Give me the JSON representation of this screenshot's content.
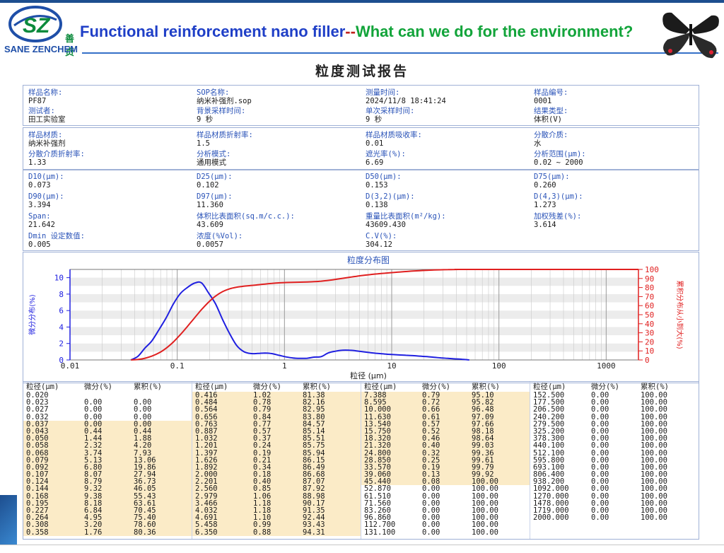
{
  "header": {
    "logo_cn": "善贞",
    "logo_en": "SANE ZENCHEM",
    "headline_a": "Functional reinforcement nano filler",
    "headline_dash": "--",
    "headline_b": "What can we do for the environment?"
  },
  "report": {
    "title": "粒度测试报告",
    "info_rows": [
      [
        {
          "label": "样品名称:",
          "value": "PF87"
        },
        {
          "label": "SOP名称:",
          "value": "纳米补强剂.sop"
        },
        {
          "label": "测量时间:",
          "value": "2024/11/8 18:41:24"
        },
        {
          "label": "样品编号:",
          "value": "0001"
        }
      ],
      [
        {
          "label": "测试者:",
          "value": "田工实验室"
        },
        {
          "label": "背景采样时间:",
          "value": "9 秒"
        },
        {
          "label": "单次采样时间:",
          "value": "9 秒"
        },
        {
          "label": "结果类型:",
          "value": "体积(V)"
        }
      ]
    ],
    "material_rows": [
      [
        {
          "label": "样品材质:",
          "value": "纳米补强剂"
        },
        {
          "label": "样品材质折射率:",
          "value": "1.5"
        },
        {
          "label": "样品材质吸收率:",
          "value": "0.01"
        },
        {
          "label": "分散介质:",
          "value": "水"
        }
      ],
      [
        {
          "label": "分散介质折射率:",
          "value": "1.33"
        },
        {
          "label": "分析模式:",
          "value": "通用模式"
        },
        {
          "label": "遮光率(%):",
          "value": "6.69"
        },
        {
          "label": "分析范围(μm):",
          "value": "0.02 ~ 2000"
        }
      ]
    ],
    "result_rows": [
      [
        {
          "label": "D10(μm):",
          "value": "0.073"
        },
        {
          "label": "D25(μm):",
          "value": "0.102"
        },
        {
          "label": "D50(μm):",
          "value": "0.153"
        },
        {
          "label": "D75(μm):",
          "value": "0.260"
        }
      ],
      [
        {
          "label": "D90(μm):",
          "value": "3.394"
        },
        {
          "label": "D97(μm):",
          "value": "11.360"
        },
        {
          "label": "D(3,2)(μm):",
          "value": "0.138"
        },
        {
          "label": "D(4,3)(μm):",
          "value": "1.273"
        }
      ],
      [
        {
          "label": "Span:",
          "value": "21.642"
        },
        {
          "label": "体积比表面积(sq.m/c.c.):",
          "value": "43.609"
        },
        {
          "label": "重量比表面积(m²/kg):",
          "value": "43609.430"
        },
        {
          "label": "加权残差(%):",
          "value": "3.614"
        }
      ],
      [
        {
          "label": "Dmin 设定数值:",
          "value": "0.005"
        },
        {
          "label": "浓度(%Vol):",
          "value": "0.0057"
        },
        {
          "label": "C.V(%):",
          "value": "304.12"
        },
        {
          "label": "",
          "value": ""
        }
      ]
    ]
  },
  "chart_data": {
    "type": "line",
    "title": "粒度分布图",
    "xlabel": "粒径 (μm)",
    "ylabel_left": "微分分布(%)",
    "ylabel_right": "累积分布从小到大(%)",
    "x_scale": "log",
    "xlim": [
      0.01,
      2000
    ],
    "ylim_left": [
      0,
      11
    ],
    "ylim_right": [
      0,
      100
    ],
    "x_ticks": [
      "0.01",
      "0.1",
      "1",
      "10",
      "100",
      "1000"
    ],
    "y_ticks_left": [
      "0",
      "2",
      "4",
      "6",
      "8",
      "10"
    ],
    "y_ticks_right": [
      "0",
      "10",
      "20",
      "30",
      "40",
      "50",
      "60",
      "70",
      "80",
      "90",
      "100"
    ],
    "grid": true,
    "series": [
      {
        "name": "微分分布(%)",
        "color": "#2020e0",
        "axis": "left",
        "x": [
          0.037,
          0.043,
          0.05,
          0.058,
          0.068,
          0.079,
          0.092,
          0.107,
          0.124,
          0.144,
          0.168,
          0.195,
          0.227,
          0.264,
          0.308,
          0.358,
          0.416,
          0.484,
          0.564,
          0.656,
          0.763,
          0.887,
          1.032,
          1.201,
          1.397,
          1.626,
          1.892,
          2.201,
          2.56,
          2.979,
          3.466,
          4.032,
          4.691,
          5.458,
          6.35,
          7.388,
          8.595,
          10.0,
          11.63,
          13.54,
          15.75,
          18.32,
          21.32,
          24.8,
          28.85,
          33.57,
          39.06,
          45.44,
          52.87
        ],
        "y": [
          0.0,
          0.44,
          1.44,
          2.32,
          3.74,
          5.13,
          6.8,
          8.07,
          8.79,
          9.32,
          9.38,
          8.18,
          6.84,
          4.95,
          3.2,
          1.76,
          1.02,
          0.78,
          0.79,
          0.84,
          0.77,
          0.57,
          0.37,
          0.24,
          0.19,
          0.21,
          0.34,
          0.4,
          0.85,
          1.06,
          1.18,
          1.18,
          1.1,
          0.99,
          0.88,
          0.79,
          0.72,
          0.66,
          0.61,
          0.57,
          0.52,
          0.46,
          0.4,
          0.32,
          0.25,
          0.19,
          0.13,
          0.08,
          0.0
        ]
      },
      {
        "name": "累积分布(%)",
        "color": "#e02020",
        "axis": "right",
        "x": [
          0.037,
          0.043,
          0.05,
          0.058,
          0.068,
          0.079,
          0.092,
          0.107,
          0.124,
          0.144,
          0.168,
          0.195,
          0.227,
          0.264,
          0.308,
          0.358,
          0.416,
          0.484,
          0.564,
          0.656,
          0.763,
          0.887,
          1.032,
          1.201,
          1.397,
          1.626,
          1.892,
          2.201,
          2.56,
          2.979,
          3.466,
          4.032,
          4.691,
          5.458,
          6.35,
          7.388,
          8.595,
          10.0,
          11.63,
          13.54,
          15.75,
          18.32,
          21.32,
          24.8,
          28.85,
          33.57,
          39.06,
          45.44,
          52.87,
          2000
        ],
        "y": [
          0.0,
          0.44,
          1.88,
          4.2,
          7.93,
          13.06,
          19.86,
          27.94,
          36.73,
          46.05,
          55.43,
          63.61,
          70.45,
          75.4,
          78.6,
          80.36,
          81.38,
          82.16,
          82.95,
          83.8,
          84.57,
          85.14,
          85.51,
          85.75,
          85.94,
          86.15,
          86.49,
          87.07,
          87.92,
          88.98,
          90.17,
          91.35,
          92.44,
          93.43,
          94.31,
          95.1,
          95.82,
          96.48,
          97.09,
          97.66,
          98.18,
          98.64,
          99.03,
          99.36,
          99.61,
          99.79,
          99.92,
          100.0,
          100.0,
          100.0
        ]
      }
    ]
  },
  "table": {
    "headers": [
      "粒径(μm)",
      "微分(%)",
      "累积(%)"
    ],
    "columns": [
      {
        "rows": [
          [
            "0.020",
            "",
            ""
          ],
          [
            "0.023",
            "0.00",
            "0.00"
          ],
          [
            "0.027",
            "0.00",
            "0.00"
          ],
          [
            "0.032",
            "0.00",
            "0.00"
          ],
          [
            "0.037",
            "0.00",
            "0.00"
          ],
          [
            "0.043",
            "0.44",
            "0.44"
          ],
          [
            "0.050",
            "1.44",
            "1.88"
          ],
          [
            "0.058",
            "2.32",
            "4.20"
          ],
          [
            "0.068",
            "3.74",
            "7.93"
          ],
          [
            "0.079",
            "5.13",
            "13.06"
          ],
          [
            "0.092",
            "6.80",
            "19.86"
          ],
          [
            "0.107",
            "8.07",
            "27.94"
          ],
          [
            "0.124",
            "8.79",
            "36.73"
          ],
          [
            "0.144",
            "9.32",
            "46.05"
          ],
          [
            "0.168",
            "9.38",
            "55.43"
          ],
          [
            "0.195",
            "8.18",
            "63.61"
          ],
          [
            "0.227",
            "6.84",
            "70.45"
          ],
          [
            "0.264",
            "4.95",
            "75.40"
          ],
          [
            "0.308",
            "3.20",
            "78.60"
          ],
          [
            "0.358",
            "1.76",
            "80.36"
          ]
        ],
        "highlight_from": 4,
        "highlight_to": 19
      },
      {
        "rows": [
          [
            "0.416",
            "1.02",
            "81.38"
          ],
          [
            "0.484",
            "0.78",
            "82.16"
          ],
          [
            "0.564",
            "0.79",
            "82.95"
          ],
          [
            "0.656",
            "0.84",
            "83.80"
          ],
          [
            "0.763",
            "0.77",
            "84.57"
          ],
          [
            "0.887",
            "0.57",
            "85.14"
          ],
          [
            "1.032",
            "0.37",
            "85.51"
          ],
          [
            "1.201",
            "0.24",
            "85.75"
          ],
          [
            "1.397",
            "0.19",
            "85.94"
          ],
          [
            "1.626",
            "0.21",
            "86.15"
          ],
          [
            "1.892",
            "0.34",
            "86.49"
          ],
          [
            "2.000",
            "0.18",
            "86.68"
          ],
          [
            "2.201",
            "0.40",
            "87.07"
          ],
          [
            "2.560",
            "0.85",
            "87.92"
          ],
          [
            "2.979",
            "1.06",
            "88.98"
          ],
          [
            "3.466",
            "1.18",
            "90.17"
          ],
          [
            "4.032",
            "1.18",
            "91.35"
          ],
          [
            "4.691",
            "1.10",
            "92.44"
          ],
          [
            "5.458",
            "0.99",
            "93.43"
          ],
          [
            "6.350",
            "0.88",
            "94.31"
          ]
        ],
        "highlight_from": 0,
        "highlight_to": 19
      },
      {
        "rows": [
          [
            "7.388",
            "0.79",
            "95.10"
          ],
          [
            "8.595",
            "0.72",
            "95.82"
          ],
          [
            "10.000",
            "0.66",
            "96.48"
          ],
          [
            "11.630",
            "0.61",
            "97.09"
          ],
          [
            "13.540",
            "0.57",
            "97.66"
          ],
          [
            "15.750",
            "0.52",
            "98.18"
          ],
          [
            "18.320",
            "0.46",
            "98.64"
          ],
          [
            "21.320",
            "0.40",
            "99.03"
          ],
          [
            "24.800",
            "0.32",
            "99.36"
          ],
          [
            "28.850",
            "0.25",
            "99.61"
          ],
          [
            "33.570",
            "0.19",
            "99.79"
          ],
          [
            "39.060",
            "0.13",
            "99.92"
          ],
          [
            "45.440",
            "0.08",
            "100.00"
          ],
          [
            "52.870",
            "0.00",
            "100.00"
          ],
          [
            "61.510",
            "0.00",
            "100.00"
          ],
          [
            "71.560",
            "0.00",
            "100.00"
          ],
          [
            "83.260",
            "0.00",
            "100.00"
          ],
          [
            "96.860",
            "0.00",
            "100.00"
          ],
          [
            "112.700",
            "0.00",
            "100.00"
          ],
          [
            "131.100",
            "0.00",
            "100.00"
          ]
        ],
        "highlight_from": 0,
        "highlight_to": 12
      },
      {
        "rows": [
          [
            "152.500",
            "0.00",
            "100.00"
          ],
          [
            "177.500",
            "0.00",
            "100.00"
          ],
          [
            "206.500",
            "0.00",
            "100.00"
          ],
          [
            "240.200",
            "0.00",
            "100.00"
          ],
          [
            "279.500",
            "0.00",
            "100.00"
          ],
          [
            "325.200",
            "0.00",
            "100.00"
          ],
          [
            "378.300",
            "0.00",
            "100.00"
          ],
          [
            "440.100",
            "0.00",
            "100.00"
          ],
          [
            "512.100",
            "0.00",
            "100.00"
          ],
          [
            "595.800",
            "0.00",
            "100.00"
          ],
          [
            "693.100",
            "0.00",
            "100.00"
          ],
          [
            "806.400",
            "0.00",
            "100.00"
          ],
          [
            "938.200",
            "0.00",
            "100.00"
          ],
          [
            "1092.000",
            "0.00",
            "100.00"
          ],
          [
            "1270.000",
            "0.00",
            "100.00"
          ],
          [
            "1478.000",
            "0.00",
            "100.00"
          ],
          [
            "1719.000",
            "0.00",
            "100.00"
          ],
          [
            "2000.000",
            "0.00",
            "100.00"
          ]
        ],
        "highlight_from": -1,
        "highlight_to": -1
      }
    ]
  }
}
